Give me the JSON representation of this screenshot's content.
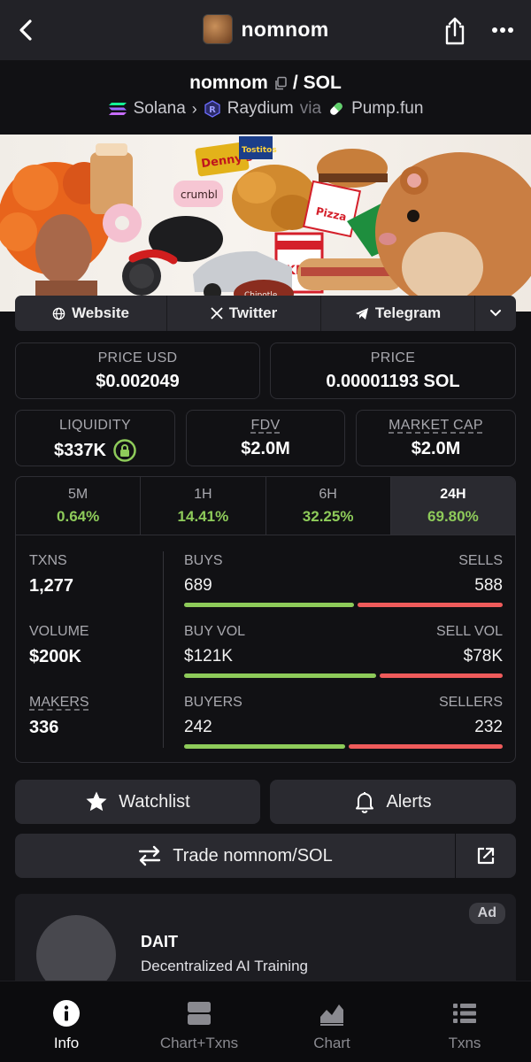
{
  "nav": {
    "title": "nomnom"
  },
  "pair": {
    "base": "nomnom",
    "separator": "/",
    "quote": "SOL",
    "chain": "Solana",
    "dex": "Raydium",
    "via": "via",
    "launchpad": "Pump.fun"
  },
  "banner": {
    "brands": [
      "Denny's",
      "Tostitos",
      "crumbl",
      "KFC",
      "Pizza",
      "Chipotle"
    ]
  },
  "social": {
    "website": "Website",
    "twitter": "Twitter",
    "telegram": "Telegram"
  },
  "stats": {
    "price_usd_label": "PRICE USD",
    "price_usd": "$0.002049",
    "price_label": "PRICE",
    "price": "0.00001193 SOL",
    "liquidity_label": "LIQUIDITY",
    "liquidity": "$337K",
    "fdv_label": "FDV",
    "fdv": "$2.0M",
    "mcap_label": "MARKET CAP",
    "mcap": "$2.0M"
  },
  "timeframes": [
    {
      "label": "5M",
      "change": "0.64%"
    },
    {
      "label": "1H",
      "change": "14.41%"
    },
    {
      "label": "6H",
      "change": "32.25%"
    },
    {
      "label": "24H",
      "change": "69.80%"
    }
  ],
  "activity": {
    "txns_label": "TXNS",
    "txns": "1,277",
    "buys_label": "BUYS",
    "buys": "689",
    "sells_label": "SELLS",
    "sells": "588",
    "buys_share": 0.54,
    "volume_label": "VOLUME",
    "volume": "$200K",
    "buy_vol_label": "BUY VOL",
    "buy_vol": "$121K",
    "sell_vol_label": "SELL VOL",
    "sell_vol": "$78K",
    "buy_vol_share": 0.61,
    "makers_label": "MAKERS",
    "makers": "336",
    "buyers_label": "BUYERS",
    "buyers": "242",
    "sellers_label": "SELLERS",
    "sellers": "232",
    "buyers_share": 0.51
  },
  "actions": {
    "watchlist": "Watchlist",
    "alerts": "Alerts",
    "trade": "Trade nomnom/SOL"
  },
  "ad": {
    "badge": "Ad",
    "title": "DAIT",
    "subtitle": "Decentralized AI Training"
  },
  "tabs": [
    {
      "label": "Info",
      "icon": "info-icon"
    },
    {
      "label": "Chart+Txns",
      "icon": "split-icon"
    },
    {
      "label": "Chart",
      "icon": "area-chart-icon"
    },
    {
      "label": "Txns",
      "icon": "list-icon"
    }
  ],
  "colors": {
    "green": "#8ecb5a",
    "red": "#ef5b5b",
    "surface": "#2a2a30",
    "background": "#111114"
  }
}
